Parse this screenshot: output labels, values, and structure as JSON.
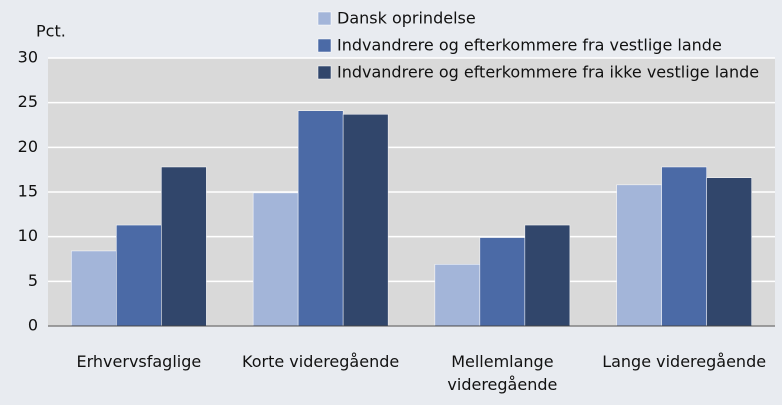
{
  "chart_data": {
    "type": "bar",
    "ylabel": "Pct.",
    "categories": [
      "Erhvervsfaglige",
      "Korte videregående",
      "Mellemlange videregående",
      "Lange videregående"
    ],
    "series": [
      {
        "name": "Dansk oprindelse",
        "color": "#a3b5d9",
        "values": [
          8.4,
          14.9,
          6.9,
          15.8
        ]
      },
      {
        "name": "Indvandrere og efterkommere fra vestlige lande",
        "color": "#4b6aa6",
        "values": [
          11.3,
          24.1,
          9.9,
          17.8
        ]
      },
      {
        "name": "Indvandrere og efterkommere fra ikke vestlige lande",
        "color": "#31466b",
        "values": [
          17.8,
          23.7,
          11.3,
          16.6
        ]
      }
    ],
    "ylim": [
      0,
      30
    ],
    "yticks": [
      0,
      5,
      10,
      15,
      20,
      25,
      30
    ],
    "grid": true,
    "legend": "top"
  }
}
